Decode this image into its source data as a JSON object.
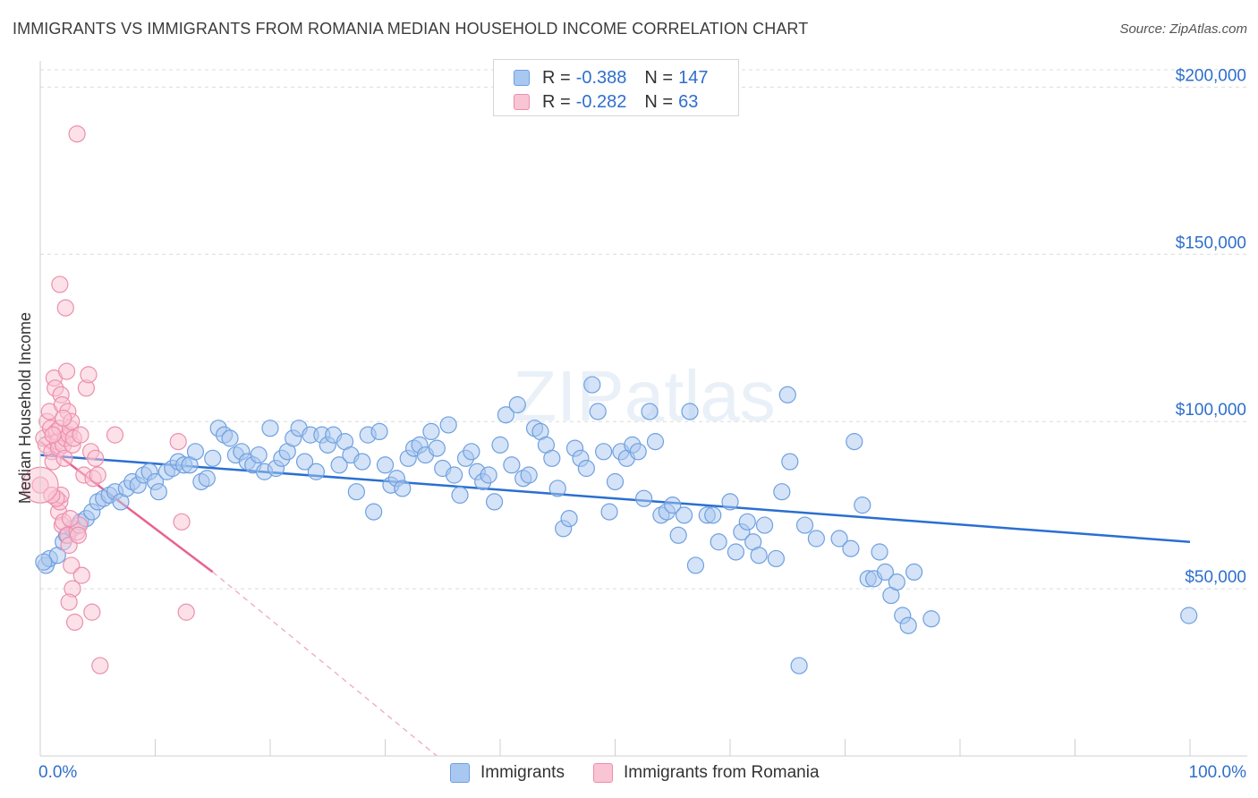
{
  "title": "IMMIGRANTS VS IMMIGRANTS FROM ROMANIA MEDIAN HOUSEHOLD INCOME CORRELATION CHART",
  "source": "Source: ZipAtlas.com",
  "watermark": "ZIPatlas",
  "legend_top": [
    {
      "r_label": "R =",
      "r_value": "-0.388",
      "n_label": "N =",
      "n_value": "147"
    },
    {
      "r_label": "R =",
      "r_value": "-0.282",
      "n_label": "N =",
      "n_value": "63"
    }
  ],
  "legend_bottom": [
    "Immigrants",
    "Immigrants from Romania"
  ],
  "chart_data": {
    "type": "scatter",
    "title": "IMMIGRANTS VS IMMIGRANTS FROM ROMANIA MEDIAN HOUSEHOLD INCOME CORRELATION CHART",
    "xlabel": "",
    "ylabel": "Median Household Income",
    "xlim": [
      0,
      100
    ],
    "ylim": [
      0,
      210000
    ],
    "x_tick_labels": [
      "0.0%",
      "100.0%"
    ],
    "y_ticks": [
      {
        "value": 50000,
        "label": "$50,000"
      },
      {
        "value": 100000,
        "label": "$100,000"
      },
      {
        "value": 150000,
        "label": "$150,000"
      },
      {
        "value": 200000,
        "label": "$200,000"
      }
    ],
    "grid": true,
    "series": [
      {
        "name": "Immigrants",
        "color": "#6fa0e0",
        "fill": "#a9c8f0",
        "R": -0.388,
        "N": 147,
        "trend": {
          "x0": 0,
          "y0": 90000,
          "x1": 100,
          "y1": 64000
        },
        "points": [
          [
            0.5,
            57000
          ],
          [
            0.8,
            59000
          ],
          [
            1.5,
            60000
          ],
          [
            2.0,
            64000
          ],
          [
            2.3,
            66000
          ],
          [
            2.8,
            68000
          ],
          [
            3.5,
            70000
          ],
          [
            4.0,
            71000
          ],
          [
            4.5,
            73000
          ],
          [
            5.0,
            76000
          ],
          [
            5.5,
            77000
          ],
          [
            6.0,
            78000
          ],
          [
            6.5,
            79000
          ],
          [
            7.0,
            76000
          ],
          [
            7.5,
            80000
          ],
          [
            8.0,
            82000
          ],
          [
            8.5,
            81000
          ],
          [
            9.0,
            84000
          ],
          [
            9.5,
            85000
          ],
          [
            10.0,
            82000
          ],
          [
            10.3,
            79000
          ],
          [
            11.0,
            85000
          ],
          [
            11.5,
            86000
          ],
          [
            12.0,
            88000
          ],
          [
            12.5,
            87000
          ],
          [
            13.0,
            87000
          ],
          [
            13.5,
            91000
          ],
          [
            14.0,
            82000
          ],
          [
            14.5,
            83000
          ],
          [
            15.0,
            89000
          ],
          [
            15.5,
            98000
          ],
          [
            16.0,
            96000
          ],
          [
            16.5,
            95000
          ],
          [
            17.0,
            90000
          ],
          [
            17.5,
            91000
          ],
          [
            18.0,
            88000
          ],
          [
            18.5,
            87000
          ],
          [
            19.0,
            90000
          ],
          [
            19.5,
            85000
          ],
          [
            20.0,
            98000
          ],
          [
            20.5,
            86000
          ],
          [
            21.0,
            89000
          ],
          [
            21.5,
            91000
          ],
          [
            22.0,
            95000
          ],
          [
            22.5,
            98000
          ],
          [
            23.0,
            88000
          ],
          [
            23.5,
            96000
          ],
          [
            24.0,
            85000
          ],
          [
            24.5,
            96000
          ],
          [
            25.0,
            93000
          ],
          [
            25.5,
            96000
          ],
          [
            26.0,
            87000
          ],
          [
            26.5,
            94000
          ],
          [
            27.0,
            90000
          ],
          [
            27.5,
            79000
          ],
          [
            28.0,
            88000
          ],
          [
            28.5,
            96000
          ],
          [
            29.0,
            73000
          ],
          [
            29.5,
            97000
          ],
          [
            30.0,
            87000
          ],
          [
            30.5,
            81000
          ],
          [
            31.0,
            83000
          ],
          [
            31.5,
            80000
          ],
          [
            32.0,
            89000
          ],
          [
            32.5,
            92000
          ],
          [
            33.0,
            93000
          ],
          [
            33.5,
            90000
          ],
          [
            34.0,
            97000
          ],
          [
            34.5,
            92000
          ],
          [
            35.0,
            86000
          ],
          [
            35.5,
            99000
          ],
          [
            36.0,
            84000
          ],
          [
            36.5,
            78000
          ],
          [
            37.0,
            89000
          ],
          [
            37.5,
            91000
          ],
          [
            38.0,
            85000
          ],
          [
            38.5,
            82000
          ],
          [
            39.0,
            84000
          ],
          [
            39.5,
            76000
          ],
          [
            40.0,
            93000
          ],
          [
            40.5,
            102000
          ],
          [
            41.0,
            87000
          ],
          [
            41.5,
            105000
          ],
          [
            42.0,
            83000
          ],
          [
            42.5,
            84000
          ],
          [
            43.0,
            98000
          ],
          [
            43.5,
            97000
          ],
          [
            44.0,
            93000
          ],
          [
            44.5,
            89000
          ],
          [
            45.0,
            80000
          ],
          [
            45.5,
            68000
          ],
          [
            46.0,
            71000
          ],
          [
            46.5,
            92000
          ],
          [
            47.0,
            89000
          ],
          [
            47.5,
            86000
          ],
          [
            48.0,
            111000
          ],
          [
            48.5,
            103000
          ],
          [
            49.0,
            91000
          ],
          [
            49.5,
            73000
          ],
          [
            50.0,
            82000
          ],
          [
            50.5,
            91000
          ],
          [
            51.0,
            89000
          ],
          [
            51.5,
            93000
          ],
          [
            52.0,
            91000
          ],
          [
            52.5,
            77000
          ],
          [
            53.0,
            103000
          ],
          [
            53.5,
            94000
          ],
          [
            54.0,
            72000
          ],
          [
            54.5,
            73000
          ],
          [
            55.0,
            75000
          ],
          [
            55.5,
            66000
          ],
          [
            56.0,
            72000
          ],
          [
            56.5,
            103000
          ],
          [
            57.0,
            57000
          ],
          [
            58.0,
            72000
          ],
          [
            58.5,
            72000
          ],
          [
            59.0,
            64000
          ],
          [
            60.0,
            76000
          ],
          [
            60.5,
            61000
          ],
          [
            61.0,
            67000
          ],
          [
            61.5,
            70000
          ],
          [
            62.0,
            64000
          ],
          [
            62.5,
            60000
          ],
          [
            63.0,
            69000
          ],
          [
            64.0,
            59000
          ],
          [
            64.5,
            79000
          ],
          [
            65.0,
            108000
          ],
          [
            65.2,
            88000
          ],
          [
            66.5,
            69000
          ],
          [
            67.5,
            65000
          ],
          [
            69.5,
            65000
          ],
          [
            70.5,
            62000
          ],
          [
            70.8,
            94000
          ],
          [
            71.5,
            75000
          ],
          [
            72.0,
            53000
          ],
          [
            72.5,
            53000
          ],
          [
            73.0,
            61000
          ],
          [
            73.5,
            55000
          ],
          [
            74.0,
            48000
          ],
          [
            74.5,
            52000
          ],
          [
            75.0,
            42000
          ],
          [
            75.5,
            39000
          ],
          [
            76.0,
            55000
          ],
          [
            77.5,
            41000
          ],
          [
            66.0,
            27000
          ],
          [
            99.9,
            42000
          ],
          [
            0.3,
            58000
          ]
        ]
      },
      {
        "name": "Immigrants from Romania",
        "color": "#ec8fad",
        "fill": "#f9c4d4",
        "R": -0.282,
        "N": 63,
        "trend": {
          "x0": 0,
          "y0": 94000,
          "x1": 15,
          "y1": 55000
        },
        "trend_dashed_to": {
          "x": 34.5,
          "y": 0
        },
        "points": [
          [
            0.0,
            81000
          ],
          [
            0.3,
            95000
          ],
          [
            0.5,
            93000
          ],
          [
            0.6,
            100000
          ],
          [
            0.8,
            103000
          ],
          [
            0.9,
            98000
          ],
          [
            1.0,
            91000
          ],
          [
            1.1,
            88000
          ],
          [
            1.2,
            113000
          ],
          [
            1.3,
            110000
          ],
          [
            1.4,
            97000
          ],
          [
            1.5,
            94000
          ],
          [
            1.6,
            92000
          ],
          [
            1.7,
            98000
          ],
          [
            1.8,
            108000
          ],
          [
            1.9,
            105000
          ],
          [
            2.0,
            93000
          ],
          [
            2.1,
            89000
          ],
          [
            2.2,
            95000
          ],
          [
            2.3,
            115000
          ],
          [
            2.4,
            103000
          ],
          [
            2.5,
            96000
          ],
          [
            2.6,
            98000
          ],
          [
            2.7,
            100000
          ],
          [
            2.8,
            93000
          ],
          [
            2.9,
            95000
          ],
          [
            1.7,
            141000
          ],
          [
            2.2,
            134000
          ],
          [
            3.2,
            186000
          ],
          [
            1.6,
            73000
          ],
          [
            1.7,
            76000
          ],
          [
            1.8,
            78000
          ],
          [
            1.9,
            69000
          ],
          [
            2.0,
            70000
          ],
          [
            2.4,
            66000
          ],
          [
            2.5,
            63000
          ],
          [
            2.7,
            57000
          ],
          [
            2.8,
            50000
          ],
          [
            2.5,
            46000
          ],
          [
            3.0,
            40000
          ],
          [
            3.2,
            67000
          ],
          [
            3.4,
            69000
          ],
          [
            3.6,
            54000
          ],
          [
            3.8,
            84000
          ],
          [
            4.0,
            110000
          ],
          [
            4.2,
            114000
          ],
          [
            4.4,
            91000
          ],
          [
            4.6,
            83000
          ],
          [
            4.8,
            89000
          ],
          [
            5.0,
            84000
          ],
          [
            4.5,
            43000
          ],
          [
            5.2,
            27000
          ],
          [
            6.5,
            96000
          ],
          [
            12.0,
            94000
          ],
          [
            12.3,
            70000
          ],
          [
            12.7,
            43000
          ],
          [
            1.4,
            77000
          ],
          [
            1.1,
            96000
          ],
          [
            3.3,
            66000
          ],
          [
            3.5,
            96000
          ],
          [
            2.0,
            101000
          ],
          [
            1.0,
            78000
          ],
          [
            2.6,
            71000
          ]
        ]
      }
    ]
  }
}
